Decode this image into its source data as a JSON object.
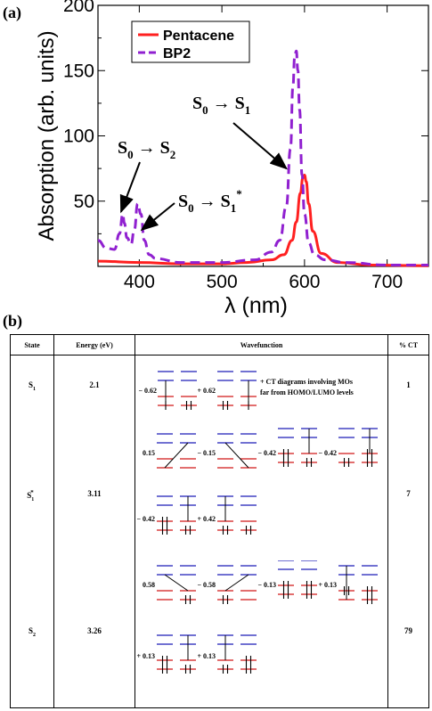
{
  "panel_a_label": "(a)",
  "panel_b_label": "(b)",
  "chart_data": {
    "type": "line",
    "xlabel": "λ (nm)",
    "ylabel": "Absorption (arb. units)",
    "xlim": [
      350,
      750
    ],
    "ylim": [
      0,
      200
    ],
    "x_ticks": [
      400,
      500,
      600,
      700
    ],
    "y_ticks": [
      50,
      100,
      150,
      200
    ],
    "legend_position": "top-left",
    "series": [
      {
        "name": "Pentacene",
        "color": "#ff2020",
        "style": "solid",
        "x": [
          350,
          400,
          450,
          500,
          530,
          560,
          575,
          585,
          590,
          595,
          598,
          600,
          602,
          605,
          610,
          620,
          640,
          680,
          750
        ],
        "y": [
          4,
          3,
          2,
          2,
          3,
          5,
          9,
          20,
          34,
          56,
          68,
          70,
          65,
          48,
          27,
          10,
          3,
          1,
          0.5
        ]
      },
      {
        "name": "BP2",
        "color": "#9020d0",
        "style": "dashed",
        "x": [
          350,
          360,
          370,
          376,
          380,
          382,
          385,
          390,
          394,
          398,
          402,
          406,
          412,
          420,
          450,
          500,
          540,
          560,
          570,
          578,
          583,
          586,
          588,
          590,
          592,
          594,
          597,
          600,
          605,
          612,
          625,
          650,
          700,
          750
        ],
        "y": [
          20,
          14,
          13,
          25,
          40,
          33,
          22,
          17,
          28,
          48,
          40,
          20,
          9,
          6,
          3,
          3,
          5,
          11,
          20,
          46,
          90,
          138,
          160,
          165,
          150,
          120,
          70,
          40,
          18,
          9,
          5,
          3,
          1,
          1
        ]
      }
    ],
    "annotations": [
      {
        "label": "S",
        "sub_from": "0",
        "arrow": "→",
        "to": "S",
        "sub_to": "2",
        "sup_to": "",
        "points_to": [
          378,
          42
        ]
      },
      {
        "label": "S",
        "sub_from": "0",
        "arrow": "→",
        "to": "S",
        "sub_to": "1",
        "sup_to": "*",
        "points_to": [
          403,
          28
        ]
      },
      {
        "label": "S",
        "sub_from": "0",
        "arrow": "→",
        "to": "S",
        "sub_to": "1",
        "sup_to": "",
        "points_to": [
          578,
          75
        ]
      }
    ]
  },
  "table": {
    "headers": [
      "State",
      "Energy (eV)",
      "Wavefunction",
      "% CT"
    ],
    "rows": [
      {
        "state": "S",
        "state_sub": "1",
        "state_sup": "",
        "energy": "2.1",
        "ct": "1",
        "coefficients": [
          "− 0.62",
          "+ 0.62"
        ],
        "note": [
          "+ CT diagrams involving MOs",
          "far from HOMO/LUMO levels"
        ]
      },
      {
        "state": "S",
        "state_sub": "1",
        "state_sup": "*",
        "energy": "3.11",
        "ct": "7",
        "coefficients": [
          "0.15",
          "− 0.15",
          "− 0.42",
          "− 0.42",
          "− 0.42",
          "+ 0.42"
        ]
      },
      {
        "state": "S",
        "state_sub": "2",
        "state_sup": "",
        "energy": "3.26",
        "ct": "79",
        "coefficients": [
          "0.58",
          "− 0.58",
          "− 0.13",
          "+ 0.13",
          "+ 0.13",
          "+ 0.13"
        ]
      }
    ]
  }
}
